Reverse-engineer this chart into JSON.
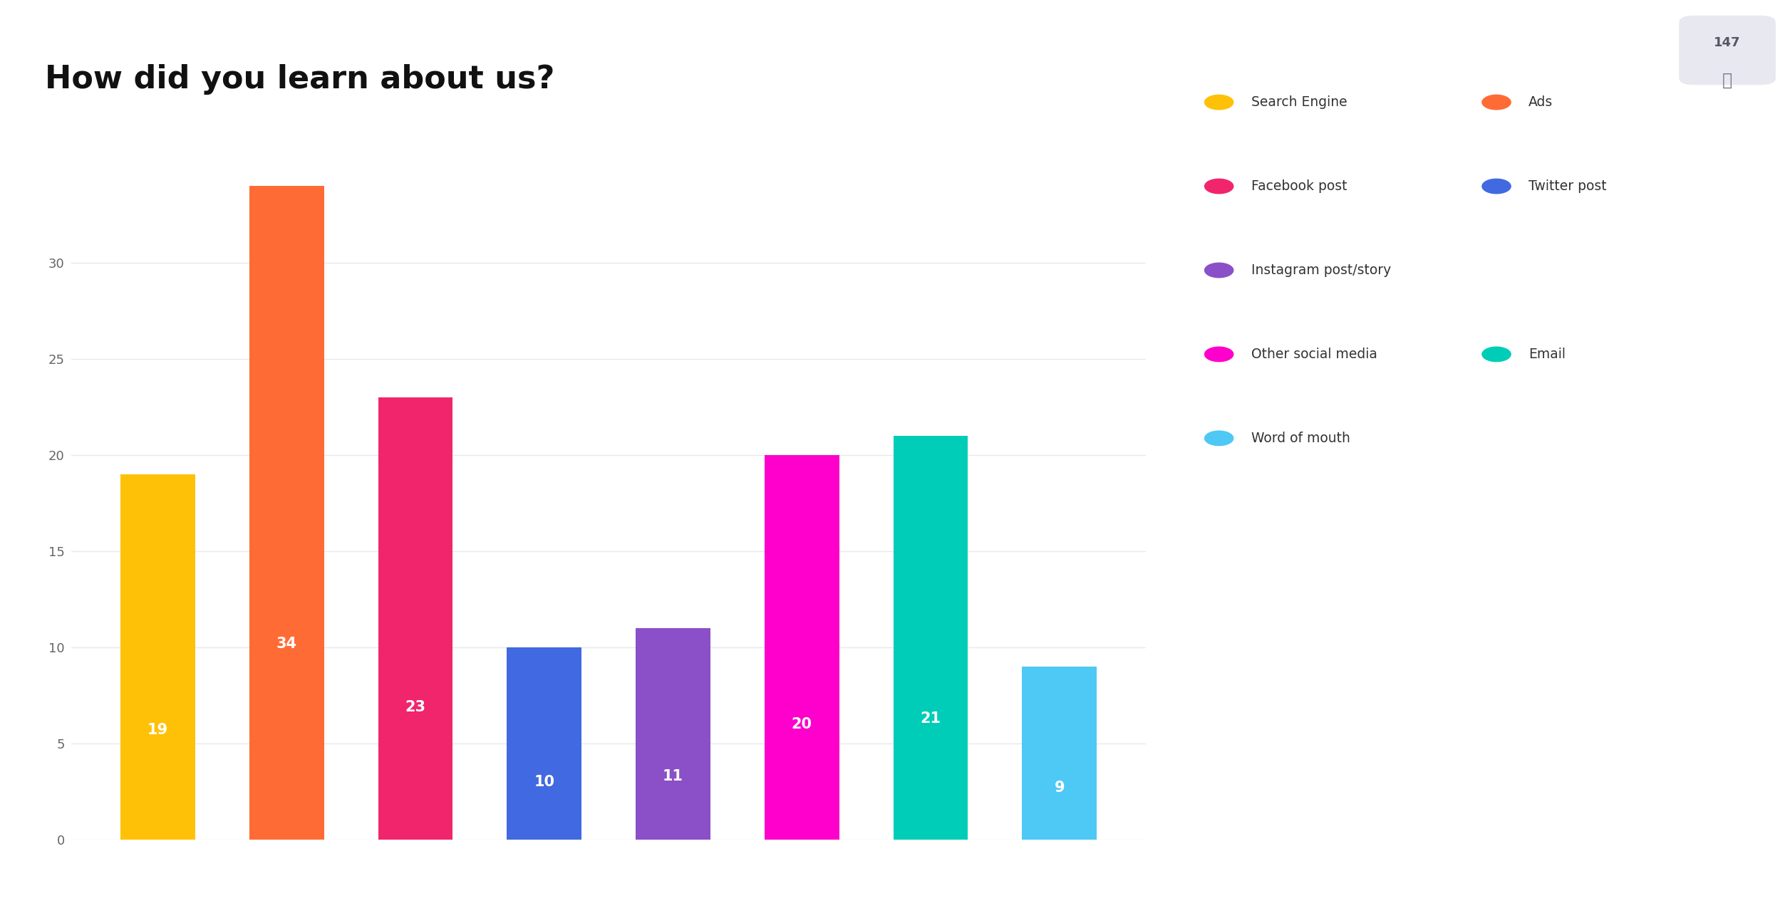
{
  "title": "How did you learn about us?",
  "categories": [
    "Search Engine",
    "Ads",
    "Facebook post",
    "Twitter post",
    "Instagram post/story",
    "Other social media",
    "Email",
    "Word of mouth"
  ],
  "values": [
    19,
    34,
    23,
    10,
    11,
    20,
    21,
    9
  ],
  "colors": [
    "#FFC107",
    "#FF6B35",
    "#F0256C",
    "#4169E1",
    "#8B4FC8",
    "#FF00CC",
    "#00CDB8",
    "#4EC8F5"
  ],
  "ylim": [
    0,
    37
  ],
  "yticks": [
    0,
    5,
    10,
    15,
    20,
    25,
    30
  ],
  "bar_label_color": "#FFFFFF",
  "bar_label_fontsize": 15,
  "title_fontsize": 32,
  "background_color": "#FFFFFF",
  "grid_color": "#E8E8E8",
  "legend_items": [
    {
      "label": "Search Engine",
      "color": "#FFC107"
    },
    {
      "label": "Ads",
      "color": "#FF6B35"
    },
    {
      "label": "Facebook post",
      "color": "#F0256C"
    },
    {
      "label": "Twitter post",
      "color": "#4169E1"
    },
    {
      "label": "Instagram post/story",
      "color": "#8B4FC8"
    },
    {
      "label": "Other social media",
      "color": "#FF00CC"
    },
    {
      "label": "Email",
      "color": "#00CDB8"
    },
    {
      "label": "Word of mouth",
      "color": "#4EC8F5"
    }
  ],
  "legend_layout": [
    [
      0,
      1
    ],
    [
      2,
      3
    ],
    [
      4
    ],
    [
      5,
      6
    ],
    [
      7
    ]
  ],
  "count_badge": "147",
  "count_badge_color": "#E8E8F0",
  "count_badge_text_color": "#555566"
}
